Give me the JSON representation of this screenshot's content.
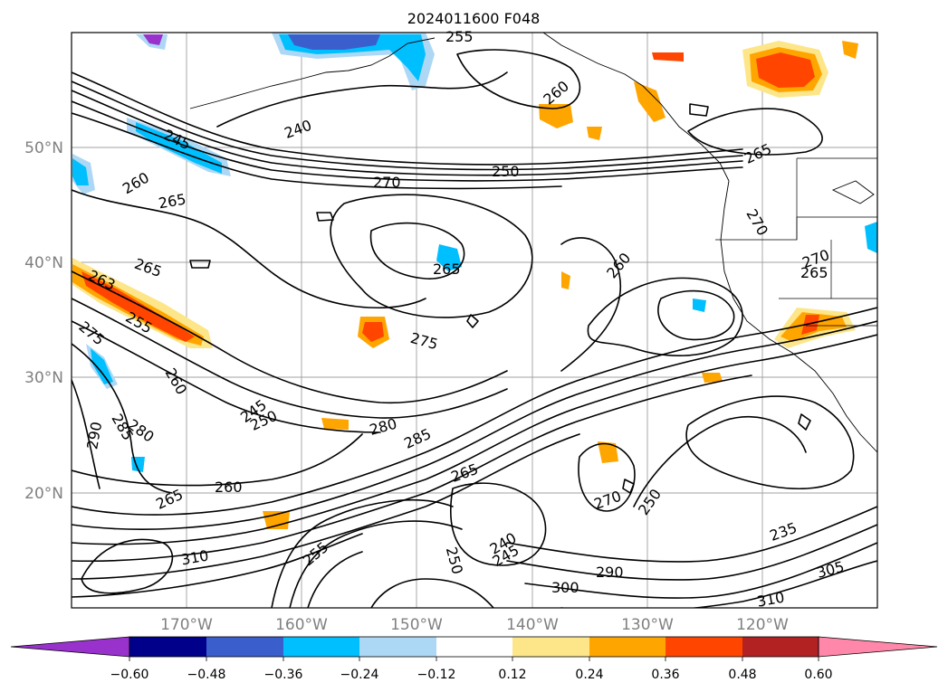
{
  "title": "2024011600 F048",
  "map": {
    "lat_labels": [
      "50°N",
      "40°N",
      "30°N",
      "20°N"
    ],
    "lon_labels": [
      "170°W",
      "160°W",
      "150°W",
      "140°W",
      "130°W",
      "120°W"
    ],
    "contour_labels": [
      "255",
      "260",
      "250",
      "270",
      "240",
      "245",
      "260",
      "265",
      "265",
      "270",
      "270",
      "265",
      "260",
      "265",
      "265",
      "263",
      "255",
      "275",
      "275",
      "260",
      "245",
      "250",
      "280",
      "285",
      "280",
      "290",
      "285",
      "265",
      "260",
      "265",
      "255",
      "250",
      "240",
      "245",
      "235",
      "310",
      "305",
      "290",
      "300",
      "310",
      "270",
      "250"
    ]
  },
  "colorbar": {
    "ticks": [
      "−0.60",
      "−0.48",
      "−0.36",
      "−0.24",
      "−0.12",
      "0.12",
      "0.24",
      "0.36",
      "0.48",
      "0.60"
    ],
    "colors": [
      "#9932cc",
      "#00008b",
      "#3a5fcd",
      "#00bfff",
      "#add8f5",
      "#ffffff",
      "#fde68a",
      "#ffa500",
      "#ff4500",
      "#b22222",
      "#ff88aa"
    ]
  }
}
